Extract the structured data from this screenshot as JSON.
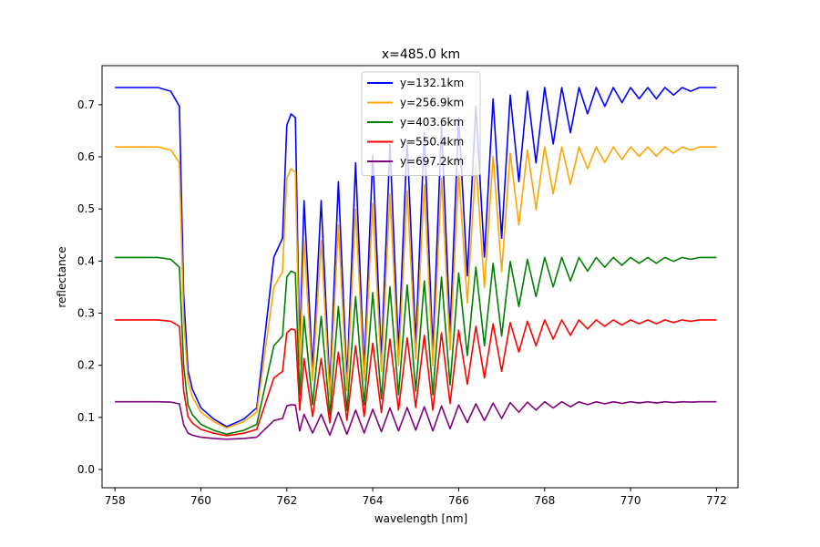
{
  "chart_data": {
    "type": "line",
    "title": "x=485.0 km",
    "xlabel": "wavelength [nm]",
    "ylabel": "reflectance",
    "xlim": [
      757.7,
      772.5
    ],
    "ylim": [
      -0.035,
      0.775
    ],
    "xticks": [
      758,
      760,
      762,
      764,
      766,
      768,
      770,
      772
    ],
    "yticks": [
      0.0,
      0.1,
      0.2,
      0.3,
      0.4,
      0.5,
      0.6,
      0.7
    ],
    "xtick_labels": [
      "758",
      "760",
      "762",
      "764",
      "766",
      "768",
      "770",
      "772"
    ],
    "ytick_labels": [
      "0.0",
      "0.1",
      "0.2",
      "0.3",
      "0.4",
      "0.5",
      "0.6",
      "0.7"
    ],
    "grid": false,
    "legend_position": "top-center",
    "series": [
      {
        "name": "y=132.1km",
        "color": "#0000ff",
        "continuum": 0.733,
        "notes": "highest series"
      },
      {
        "name": "y=256.9km",
        "color": "#ffa500",
        "continuum": 0.619
      },
      {
        "name": "y=403.6km",
        "color": "#008000",
        "continuum": 0.407
      },
      {
        "name": "y=550.4km",
        "color": "#ff0000",
        "continuum": 0.287
      },
      {
        "name": "y=697.2km",
        "color": "#800080",
        "continuum": 0.13
      }
    ],
    "x": [
      758.0,
      758.5,
      759.0,
      759.3,
      759.5,
      759.6,
      759.7,
      759.8,
      760.0,
      760.3,
      760.6,
      761.0,
      761.3,
      761.5,
      761.7,
      761.9,
      762.0,
      762.1,
      762.2,
      762.3,
      762.4,
      762.6,
      762.8,
      763.0,
      763.2,
      763.4,
      763.6,
      763.8,
      764.0,
      764.2,
      764.4,
      764.6,
      764.8,
      765.0,
      765.2,
      765.4,
      765.6,
      765.8,
      766.0,
      766.2,
      766.4,
      766.6,
      766.8,
      767.0,
      767.2,
      767.4,
      767.6,
      767.8,
      768.0,
      768.2,
      768.4,
      768.6,
      768.8,
      769.0,
      769.2,
      769.4,
      769.6,
      769.8,
      770.0,
      770.2,
      770.4,
      770.6,
      770.8,
      771.0,
      771.2,
      771.4,
      771.6,
      771.8,
      772.0
    ],
    "relative_profile": [
      1.0,
      1.0,
      1.0,
      0.99,
      0.95,
      0.45,
      0.25,
      0.2,
      0.15,
      0.12,
      0.1,
      0.12,
      0.15,
      0.35,
      0.55,
      0.6,
      0.9,
      0.93,
      0.92,
      0.3,
      0.7,
      0.25,
      0.7,
      0.2,
      0.75,
      0.22,
      0.8,
      0.25,
      0.82,
      0.28,
      0.85,
      0.3,
      0.86,
      0.32,
      0.88,
      0.3,
      0.9,
      0.35,
      0.92,
      0.5,
      0.95,
      0.55,
      0.97,
      0.6,
      0.98,
      0.75,
      0.99,
      0.8,
      1.0,
      0.85,
      1.0,
      0.88,
      1.0,
      0.93,
      1.0,
      0.95,
      1.0,
      0.96,
      1.0,
      0.97,
      1.0,
      0.97,
      1.0,
      0.98,
      1.0,
      0.99,
      1.0,
      1.0,
      1.0
    ]
  }
}
